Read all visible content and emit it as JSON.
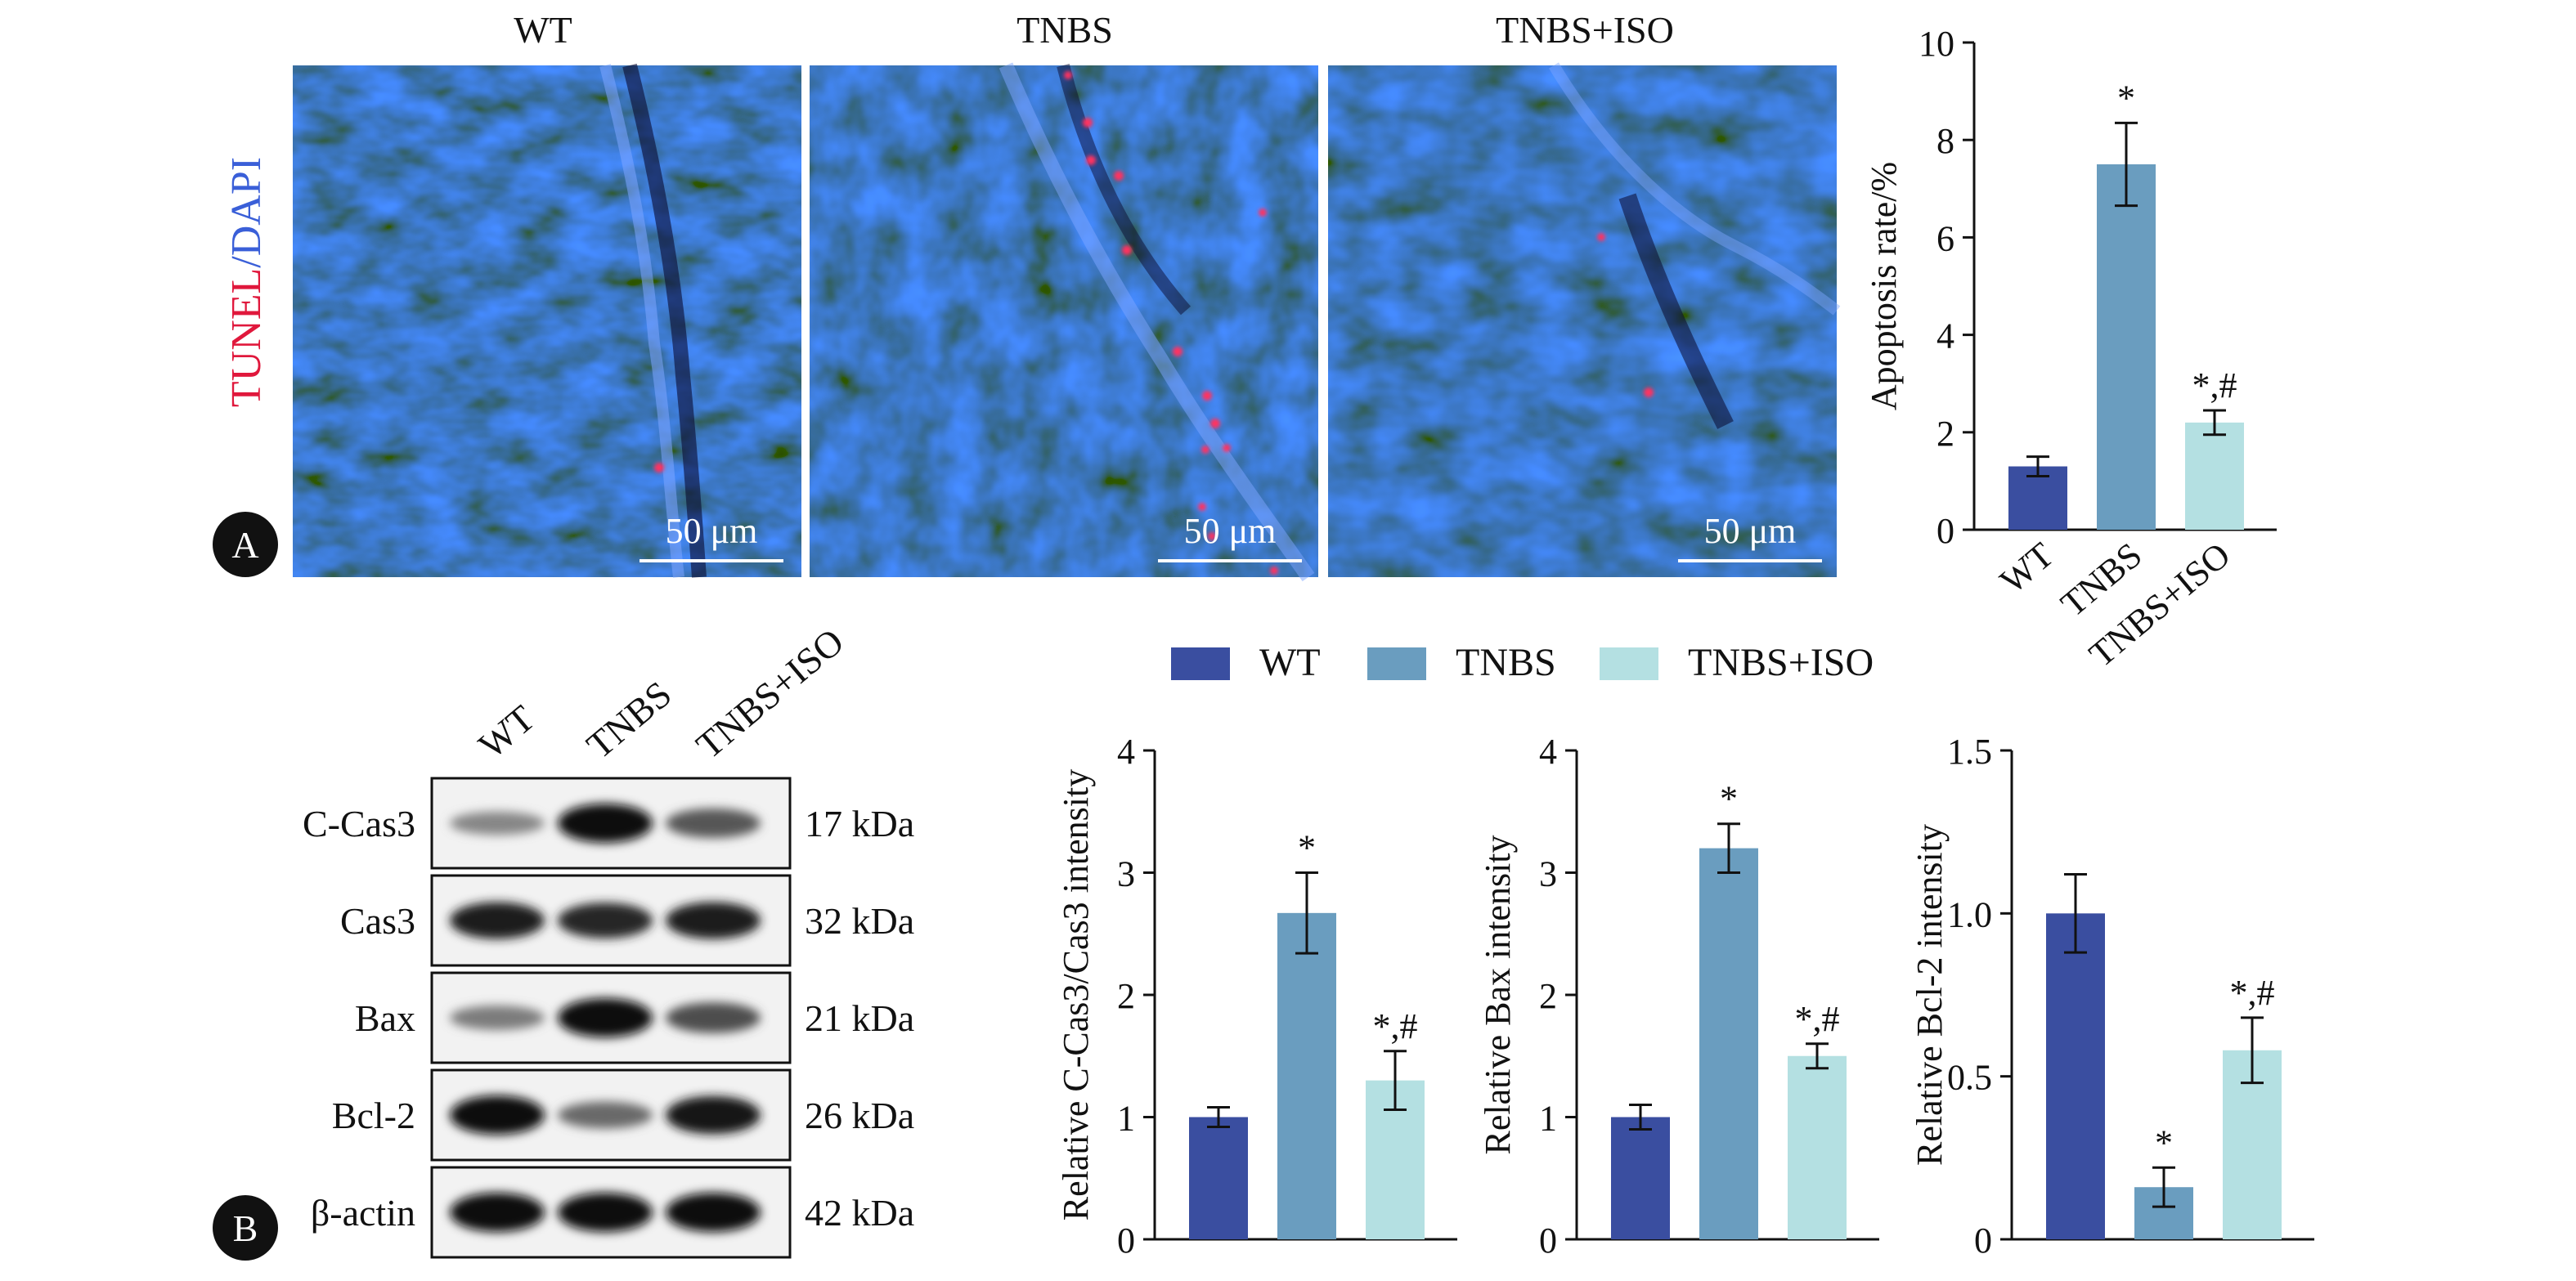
{
  "panel_a": {
    "panel_letter": "A",
    "stain_label": {
      "part1": "TUNEL",
      "separator": "/",
      "part2": "DAPI"
    },
    "stain_colors": {
      "tunel": "#e0183c",
      "dapi": "#3a5fd8"
    },
    "images": [
      {
        "title": "WT",
        "scale_bar": "50 μm",
        "tunel_spots": 1
      },
      {
        "title": "TNBS",
        "scale_bar": "50 μm",
        "tunel_spots": 14
      },
      {
        "title": "TNBS+ISO",
        "scale_bar": "50 μm",
        "tunel_spots": 2
      }
    ]
  },
  "panel_b": {
    "panel_letter": "B",
    "lanes": [
      "WT",
      "TNBS",
      "TNBS+ISO"
    ],
    "blots": [
      {
        "protein": "C-Cas3",
        "size": "17 kDa",
        "intensity": [
          0.35,
          1.0,
          0.6
        ]
      },
      {
        "protein": "Cas3",
        "size": "32 kDa",
        "intensity": [
          0.9,
          0.85,
          0.9
        ]
      },
      {
        "protein": "Bax",
        "size": "21 kDa",
        "intensity": [
          0.4,
          1.0,
          0.65
        ]
      },
      {
        "protein": "Bcl-2",
        "size": "26 kDa",
        "intensity": [
          1.0,
          0.5,
          0.95
        ]
      },
      {
        "protein": "β-actin",
        "size": "42 kDa",
        "intensity": [
          1.0,
          1.0,
          1.0
        ]
      }
    ],
    "legend": [
      {
        "label": "WT",
        "color": "#3a4ea0"
      },
      {
        "label": "TNBS",
        "color": "#6a9dbf"
      },
      {
        "label": "TNBS+ISO",
        "color": "#b4e0e2"
      }
    ]
  },
  "chart_data": [
    {
      "id": "apoptosis",
      "type": "bar",
      "categories": [
        "WT",
        "TNBS",
        "TNBS+ISO"
      ],
      "values": [
        1.3,
        7.5,
        2.2
      ],
      "errors": [
        0.2,
        0.85,
        0.25
      ],
      "annotations": [
        "",
        "*",
        "*,#"
      ],
      "ylabel": "Apoptosis rate/%",
      "ylim": [
        0,
        10
      ],
      "yticks": [
        0,
        2,
        4,
        6,
        8,
        10
      ],
      "ytick_labels": [
        "0",
        "2",
        "4",
        "6",
        "8",
        "10"
      ],
      "xtick_rotated": true,
      "colors": [
        "#3a4ea0",
        "#6a9dbf",
        "#b4e0e2"
      ],
      "grid": false
    },
    {
      "id": "ccas3",
      "type": "bar",
      "categories": [
        "WT",
        "TNBS",
        "TNBS+ISO"
      ],
      "values": [
        1.0,
        2.67,
        1.3
      ],
      "errors": [
        0.08,
        0.33,
        0.24
      ],
      "annotations": [
        "",
        "*",
        "*,#"
      ],
      "ylabel": "Relative C-Cas3/Cas3 intensity",
      "ylim": [
        0,
        4
      ],
      "yticks": [
        0,
        1,
        2,
        3,
        4
      ],
      "ytick_labels": [
        "0",
        "1",
        "2",
        "3",
        "4"
      ],
      "xtick_rotated": false,
      "colors": [
        "#3a4ea0",
        "#6a9dbf",
        "#b4e0e2"
      ],
      "grid": false
    },
    {
      "id": "bax",
      "type": "bar",
      "categories": [
        "WT",
        "TNBS",
        "TNBS+ISO"
      ],
      "values": [
        1.0,
        3.2,
        1.5
      ],
      "errors": [
        0.1,
        0.2,
        0.1
      ],
      "annotations": [
        "",
        "*",
        "*,#"
      ],
      "ylabel": "Relative Bax intensity",
      "ylim": [
        0,
        4
      ],
      "yticks": [
        0,
        1,
        2,
        3,
        4
      ],
      "ytick_labels": [
        "0",
        "1",
        "2",
        "3",
        "4"
      ],
      "xtick_rotated": false,
      "colors": [
        "#3a4ea0",
        "#6a9dbf",
        "#b4e0e2"
      ],
      "grid": false
    },
    {
      "id": "bcl2",
      "type": "bar",
      "categories": [
        "WT",
        "TNBS",
        "TNBS+ISO"
      ],
      "values": [
        1.0,
        0.16,
        0.58
      ],
      "errors": [
        0.12,
        0.06,
        0.1
      ],
      "annotations": [
        "",
        "*",
        "*,#"
      ],
      "ylabel": "Relative Bcl-2 intensity",
      "ylim": [
        0,
        1.5
      ],
      "yticks": [
        0,
        0.5,
        1.0,
        1.5
      ],
      "ytick_labels": [
        "0",
        "0.5",
        "1.0",
        "1.5"
      ],
      "xtick_rotated": false,
      "colors": [
        "#3a4ea0",
        "#6a9dbf",
        "#b4e0e2"
      ],
      "grid": false
    }
  ]
}
